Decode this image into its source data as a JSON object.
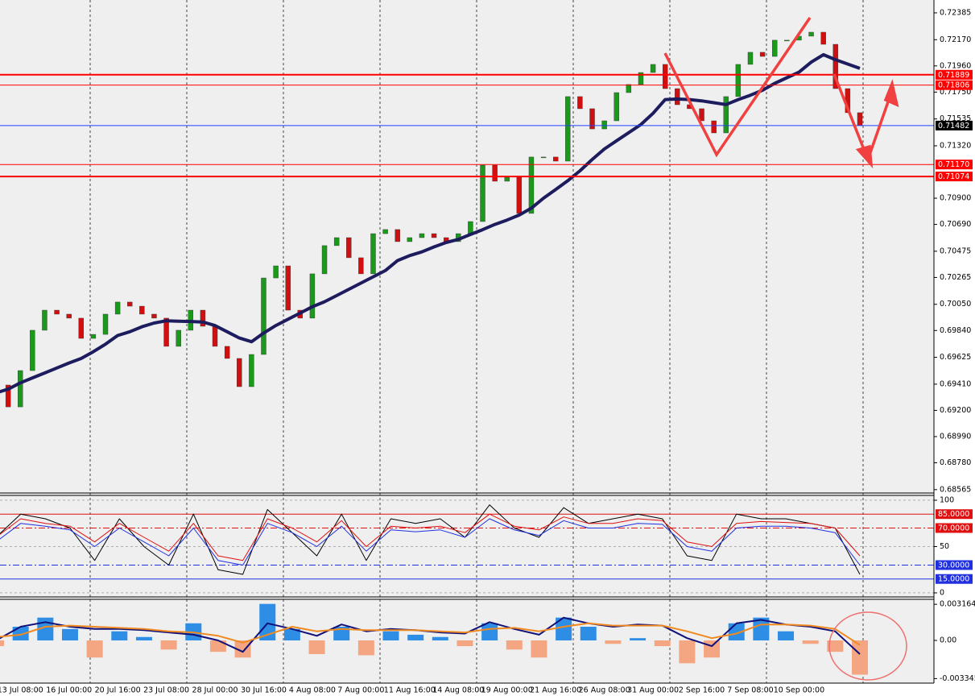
{
  "chart_data": [
    {
      "type": "candlestick",
      "categories": [
        null,
        null,
        "13 Jul 08:00",
        null,
        null,
        null,
        "16 Jul 00:00",
        null,
        null,
        null,
        "20 Jul 16:00",
        null,
        null,
        null,
        "23 Jul 08:00",
        null,
        null,
        null,
        "28 Jul 00:00",
        null,
        null,
        null,
        "30 Jul 16:00",
        null,
        null,
        null,
        "4 Aug 08:00",
        null,
        null,
        null,
        "7 Aug 00:00",
        null,
        null,
        null,
        "11 Aug 16:00",
        null,
        null,
        null,
        "14 Aug 08:00",
        null,
        null,
        null,
        "19 Aug 00:00",
        null,
        null,
        null,
        "21 Aug 16:00",
        null,
        null,
        null,
        "26 Aug 08:00",
        null,
        null,
        null,
        "31 Aug 00:00",
        null,
        null,
        null,
        "2 Sep 16:00",
        null,
        null,
        null,
        "7 Sep 08:00",
        null,
        null,
        null,
        "10 Sep 00:00",
        null,
        null,
        null,
        null,
        null
      ],
      "series": [
        {
          "color": "#1a9a1a",
          "down_color": "#d01010",
          "values": [
            0.69403,
            0.69228,
            0.69519,
            0.69842,
            0.70003,
            0.69971,
            0.69939,
            0.69777,
            0.69809,
            0.69971,
            0.70068,
            0.70035,
            0.69971,
            0.69939,
            0.69713,
            0.69842,
            0.70003,
            0.69874,
            0.69713,
            0.69616,
            0.6939,
            0.69648,
            0.70261,
            0.70358,
            0.70003,
            0.69939,
            0.70294,
            0.7052,
            0.70584,
            0.70423,
            0.70294,
            0.70616,
            0.70649,
            0.70552,
            0.70584,
            0.70616,
            0.70584,
            0.70552,
            0.70616,
            0.70713,
            0.71165,
            0.71036,
            0.71068,
            0.70778,
            0.7123,
            0.7123,
            0.71197,
            0.71714,
            0.71617,
            0.71455,
            0.7152,
            0.71746,
            0.71811,
            0.71907,
            0.71972,
            0.71778,
            0.71649,
            0.71617,
            0.7152,
            0.71423,
            0.71714,
            0.71972,
            0.72069,
            0.72036,
            0.72166,
            0.72166,
            0.72198,
            0.7223,
            0.72133,
            0.71778,
            0.71585,
            0.71482
          ]
        },
        {
          "color": "#1c1c5e",
          "type": "line",
          "values": [
            0.6934,
            0.6937,
            0.6942,
            0.6946,
            0.695,
            0.6954,
            0.6958,
            0.69616,
            0.6967,
            0.6973,
            0.698,
            0.6983,
            0.6987,
            0.699,
            0.69918,
            0.69915,
            0.69912,
            0.69908,
            0.6988,
            0.6983,
            0.6978,
            0.6975,
            0.6982,
            0.6988,
            0.6993,
            0.6998,
            0.7003,
            0.7007,
            0.7012,
            0.7017,
            0.7022,
            0.7027,
            0.7032,
            0.704,
            0.7044,
            0.7047,
            0.7051,
            0.70545,
            0.7057,
            0.7061,
            0.70648,
            0.7069,
            0.70725,
            0.70765,
            0.7082,
            0.709,
            0.7097,
            0.7104,
            0.7112,
            0.7121,
            0.71294,
            0.7136,
            0.71425,
            0.7149,
            0.7158,
            0.7169,
            0.71695,
            0.7169,
            0.7168,
            0.71665,
            0.7165,
            0.7169,
            0.71725,
            0.71765,
            0.7182,
            0.71865,
            0.7191,
            0.7199,
            0.7205,
            0.7201,
            0.71975,
            0.7194
          ]
        }
      ],
      "ylim": [
        0.68538,
        0.72488
      ],
      "yticks": [
        {
          "value": 0.72385,
          "label": "0.72385"
        },
        {
          "value": 0.7217,
          "label": "0.72170"
        },
        {
          "value": 0.7196,
          "label": "0.71960"
        },
        {
          "value": 0.7175,
          "label": "0.71750"
        },
        {
          "value": 0.71535,
          "label": "0.71535"
        },
        {
          "value": 0.7132,
          "label": "0.71320"
        },
        {
          "value": 0.709,
          "label": "0.70900"
        },
        {
          "value": 0.7069,
          "label": "0.70690"
        },
        {
          "value": 0.70475,
          "label": "0.70475"
        },
        {
          "value": 0.70265,
          "label": "0.70265"
        },
        {
          "value": 0.7005,
          "label": "0.70050"
        },
        {
          "value": 0.6984,
          "label": "0.69840"
        },
        {
          "value": 0.69625,
          "label": "0.69625"
        },
        {
          "value": 0.6941,
          "label": "0.69410"
        },
        {
          "value": 0.692,
          "label": "0.69200"
        },
        {
          "value": 0.6899,
          "label": "0.68990"
        },
        {
          "value": 0.6878,
          "label": "0.68780"
        },
        {
          "value": 0.68565,
          "label": "0.68565"
        }
      ],
      "levels": [
        {
          "value": 0.71889,
          "label": "0.71889",
          "color": "#ff0000",
          "width": 2
        },
        {
          "value": 0.71806,
          "label": "0.71806",
          "color": "#ff0000",
          "width": 1
        },
        {
          "value": 0.71482,
          "label": "0.71482",
          "color": "#2040ff",
          "box": "#000000",
          "width": 1
        },
        {
          "value": 0.7117,
          "label": "0.71170",
          "color": "#ff0000",
          "width": 1
        },
        {
          "value": 0.71074,
          "label": "0.71074",
          "color": "#ff0000",
          "width": 2
        }
      ]
    },
    {
      "type": "line",
      "series": [
        {
          "color": "#000000",
          "values": [
            60,
            85,
            80,
            70,
            35,
            80,
            50,
            30,
            85,
            25,
            20,
            90,
            65,
            40,
            85,
            35,
            80,
            75,
            80,
            60,
            95,
            70,
            60,
            92,
            75,
            80,
            85,
            80,
            40,
            35,
            85,
            80,
            80,
            75,
            70,
            20
          ]
        },
        {
          "color": "#e01010",
          "values": [
            60,
            80,
            75,
            72,
            55,
            75,
            60,
            45,
            75,
            40,
            35,
            80,
            70,
            55,
            78,
            50,
            72,
            70,
            72,
            65,
            85,
            72,
            68,
            82,
            75,
            75,
            80,
            78,
            55,
            50,
            75,
            77,
            76,
            75,
            70,
            40
          ]
        },
        {
          "color": "#2030e0",
          "values": [
            55,
            75,
            72,
            68,
            50,
            70,
            55,
            40,
            70,
            35,
            30,
            75,
            65,
            50,
            72,
            45,
            68,
            66,
            68,
            60,
            80,
            68,
            62,
            78,
            70,
            70,
            75,
            74,
            50,
            45,
            70,
            72,
            72,
            70,
            65,
            30
          ]
        }
      ],
      "ylim": [
        -3.5,
        105.2
      ],
      "yticks": [
        100,
        50,
        0
      ],
      "levels": [
        {
          "value": 85,
          "label": "85.0000",
          "color": "#e01010",
          "dash": "none"
        },
        {
          "value": 70,
          "label": "70.0000",
          "color": "#e01010",
          "dash": "8 3 2 3"
        },
        {
          "value": 30,
          "label": "30.0000",
          "color": "#2030e0",
          "dash": "8 3 2 3"
        },
        {
          "value": 15,
          "label": "15.0000",
          "color": "#2030e0",
          "dash": "none"
        }
      ]
    },
    {
      "type": "macd",
      "histogram": {
        "up_color": "#2e8ee6",
        "down_color": "#f4a582",
        "values": [
          -0.0005,
          0.0012,
          0.002,
          0.001,
          -0.0015,
          0.0008,
          0.0003,
          -0.0008,
          0.0015,
          -0.001,
          -0.0015,
          0.0032,
          0.001,
          -0.0012,
          0.0012,
          -0.0013,
          0.0008,
          0.0005,
          0.0003,
          -0.0005,
          0.0015,
          -0.0008,
          -0.0015,
          0.002,
          0.0012,
          -0.0003,
          0.0002,
          -0.0005,
          -0.002,
          -0.0015,
          0.0015,
          0.002,
          0.0008,
          -0.0003,
          -0.001,
          -0.003
        ]
      },
      "series": [
        {
          "color": "#10107a",
          "values": [
            0,
            0.0012,
            0.0016,
            0.0012,
            0.001,
            0.001,
            0.0009,
            0.0007,
            0.0005,
            0,
            -0.001,
            0.0015,
            0.001,
            0.0004,
            0.0014,
            0.0008,
            0.001,
            0.0009,
            0.0007,
            0.0006,
            0.0016,
            0.001,
            0.0005,
            0.002,
            0.0015,
            0.0012,
            0.0014,
            0.0013,
            0.0002,
            -0.0005,
            0.0015,
            0.0018,
            0.0014,
            0.0012,
            0.0008,
            -0.0012
          ]
        },
        {
          "color": "#f08a20",
          "values": [
            0.0003,
            0.0005,
            0.0012,
            0.0013,
            0.0012,
            0.0011,
            0.001,
            0.0008,
            0.0007,
            0.0004,
            -0.0002,
            0.0005,
            0.0012,
            0.0008,
            0.001,
            0.0009,
            0.0009,
            0.0009,
            0.0008,
            0.0007,
            0.001,
            0.0011,
            0.0008,
            0.0012,
            0.0015,
            0.0013,
            0.0013,
            0.0013,
            0.0008,
            0.0002,
            0.0006,
            0.0014,
            0.0014,
            0.0013,
            0.001,
            -0.0004
          ]
        }
      ],
      "ylim": [
        -0.00374,
        0.0036
      ],
      "yticks": [
        0.0031642,
        {
          "value": 0,
          "label": "0.00"
        },
        -0.003345
      ]
    }
  ]
}
